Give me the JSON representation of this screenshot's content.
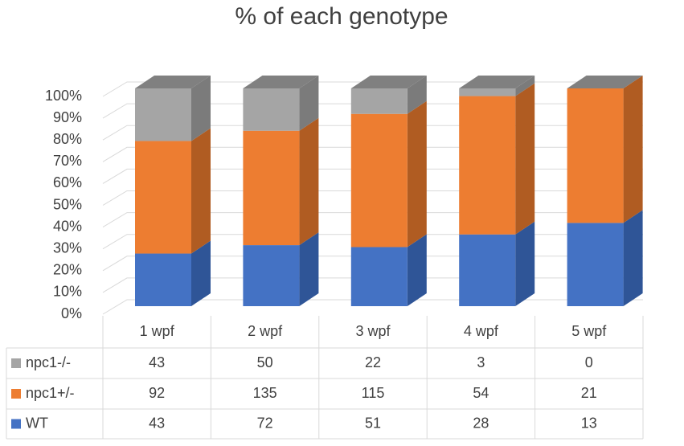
{
  "chart_data": {
    "type": "stacked_percent_bar_3d",
    "title": "% of each genotype",
    "categories": [
      "1 wpf",
      "2 wpf",
      "3 wpf",
      "4 wpf",
      "5 wpf"
    ],
    "series": [
      {
        "name": "npc1-/-",
        "color": "#a5a5a5",
        "side_color": "#7b7b7b",
        "values": [
          43,
          50,
          22,
          3,
          0
        ]
      },
      {
        "name": "npc1+/-",
        "color": "#ed7d31",
        "side_color": "#b05c22",
        "values": [
          92,
          135,
          115,
          54,
          21
        ]
      },
      {
        "name": "WT",
        "color": "#4472c4",
        "side_color": "#2f5597",
        "values": [
          43,
          72,
          51,
          28,
          13
        ]
      }
    ],
    "ylim": [
      0,
      100
    ],
    "yticks": [
      {
        "value": 0,
        "label": "0%"
      },
      {
        "value": 10,
        "label": "10%"
      },
      {
        "value": 20,
        "label": "20%"
      },
      {
        "value": 30,
        "label": "30%"
      },
      {
        "value": 40,
        "label": "40%"
      },
      {
        "value": 50,
        "label": "50%"
      },
      {
        "value": 60,
        "label": "60%"
      },
      {
        "value": 70,
        "label": "70%"
      },
      {
        "value": 80,
        "label": "80%"
      },
      {
        "value": 90,
        "label": "90%"
      },
      {
        "value": 100,
        "label": "100%"
      }
    ],
    "grid": true,
    "data_table": true
  }
}
